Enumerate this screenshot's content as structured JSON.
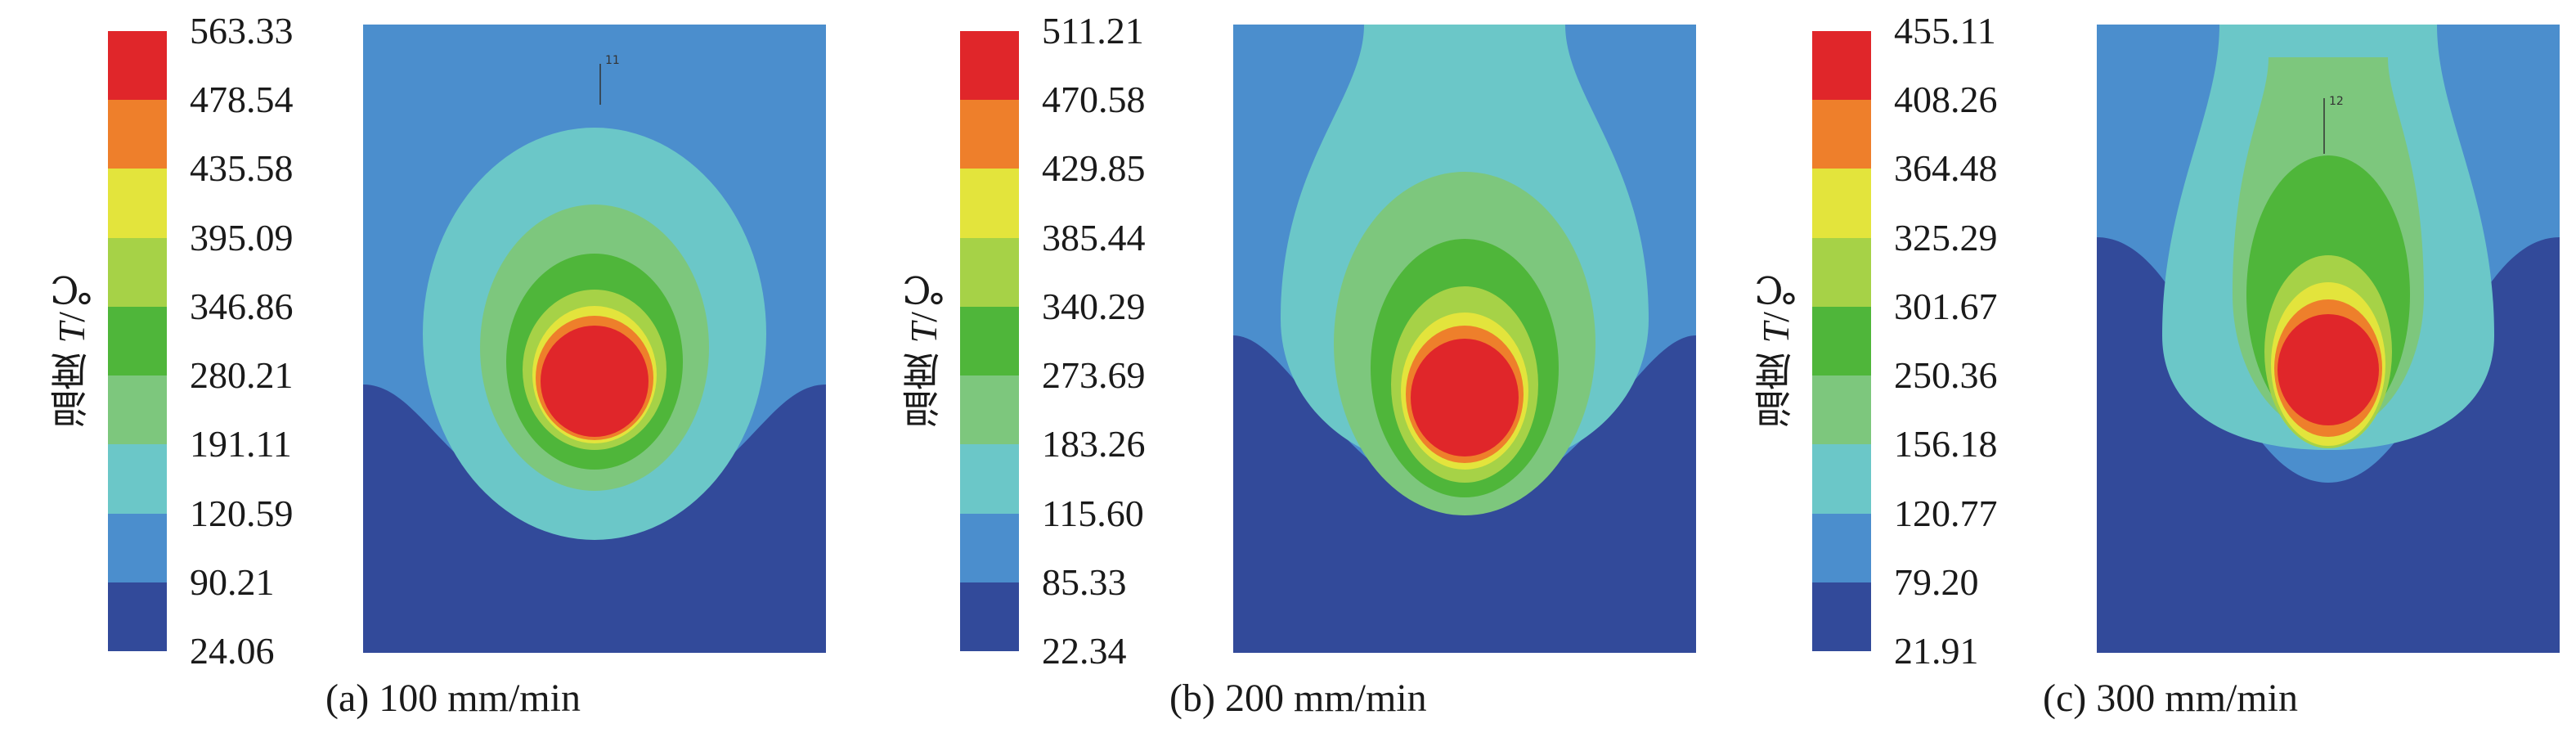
{
  "chart_data": [
    {
      "type": "heatmap",
      "title": "(a) 100 mm/min",
      "caption": "(a) 100 mm/min",
      "scan_speed": "100 mm/min",
      "ylabel": {
        "prefix": "温度 ",
        "var": "T",
        "unit": "/℃"
      },
      "colorbar_labels": [
        "563.33",
        "478.54",
        "435.58",
        "395.09",
        "346.86",
        "280.21",
        "191.11",
        "120.59",
        "90.21",
        "24.06"
      ],
      "colorbar_colors": [
        "#e0262a",
        "#ee7f2b",
        "#e3e43c",
        "#a6d247",
        "#4fb63a",
        "#7dc77d",
        "#6bc7c8",
        "#4b8ecd",
        "#324a9a"
      ],
      "temperature_range_c": [
        24.06,
        563.33
      ],
      "annotation_marks": [
        "11"
      ]
    },
    {
      "type": "heatmap",
      "title": "(b) 200 mm/min",
      "caption": "(b) 200 mm/min",
      "scan_speed": "200 mm/min",
      "ylabel": {
        "prefix": "温度 ",
        "var": "T",
        "unit": "/℃"
      },
      "colorbar_labels": [
        "511.21",
        "470.58",
        "429.85",
        "385.44",
        "340.29",
        "273.69",
        "183.26",
        "115.60",
        "85.33",
        "22.34"
      ],
      "colorbar_colors": [
        "#e0262a",
        "#ee7f2b",
        "#e3e43c",
        "#a6d247",
        "#4fb63a",
        "#7dc77d",
        "#6bc7c8",
        "#4b8ecd",
        "#324a9a"
      ],
      "temperature_range_c": [
        22.34,
        511.21
      ],
      "annotation_marks": []
    },
    {
      "type": "heatmap",
      "title": "(c) 300 mm/min",
      "caption": "(c) 300 mm/min",
      "scan_speed": "300 mm/min",
      "ylabel": {
        "prefix": "温度 ",
        "var": "T",
        "unit": "/℃"
      },
      "colorbar_labels": [
        "455.11",
        "408.26",
        "364.48",
        "325.29",
        "301.67",
        "250.36",
        "156.18",
        "120.77",
        "79.20",
        "21.91"
      ],
      "colorbar_colors": [
        "#e0262a",
        "#ee7f2b",
        "#e3e43c",
        "#a6d247",
        "#4fb63a",
        "#7dc77d",
        "#6bc7c8",
        "#4b8ecd",
        "#324a9a"
      ],
      "temperature_range_c": [
        21.91,
        455.11
      ],
      "annotation_marks": [
        "12"
      ]
    }
  ]
}
